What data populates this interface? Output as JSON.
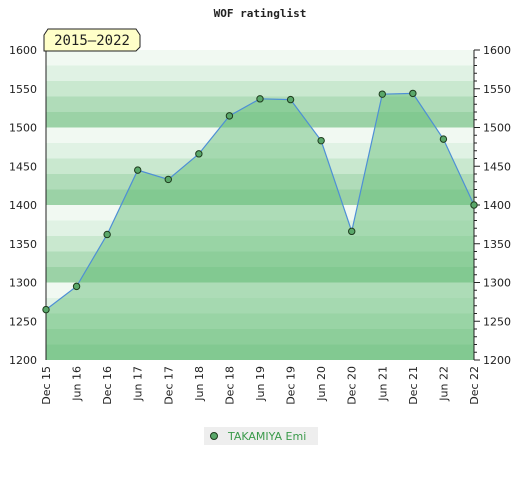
{
  "chart_data": {
    "type": "area",
    "title": "WOF ratinglist",
    "period_badge": "2015–2022",
    "x": [
      "Dec 15",
      "Jun 16",
      "Dec 16",
      "Jun 17",
      "Dec 17",
      "Jun 18",
      "Dec 18",
      "Jun 19",
      "Dec 19",
      "Jun 20",
      "Dec 20",
      "Jun 21",
      "Dec 21",
      "Jun 22",
      "Dec 22"
    ],
    "series": [
      {
        "name": "TAKAMIYA Emi",
        "values": [
          1265,
          1295,
          1362,
          1445,
          1433,
          1466,
          1515,
          1537,
          1536,
          1483,
          1366,
          1543,
          1544,
          1485,
          1400
        ]
      }
    ],
    "ylim": [
      1200,
      1600
    ],
    "yticks": [
      1200,
      1250,
      1300,
      1350,
      1400,
      1450,
      1500,
      1550,
      1600
    ],
    "xlabel": "",
    "ylabel": "",
    "grid": true,
    "legend_position": "bottom-center",
    "colors": {
      "band_colors": [
        "#9bd2a6",
        "#b0dcb9",
        "#c9e8cf",
        "#e0f2e4",
        "#f1f9f2"
      ],
      "area_fill": "#6abf7c",
      "line": "#4e8fd6",
      "marker_fill": "#5aa86a",
      "marker_stroke": "#1e3c1e",
      "legend_bg": "#eeeeee",
      "badge_bg": "#ffffc8"
    }
  }
}
